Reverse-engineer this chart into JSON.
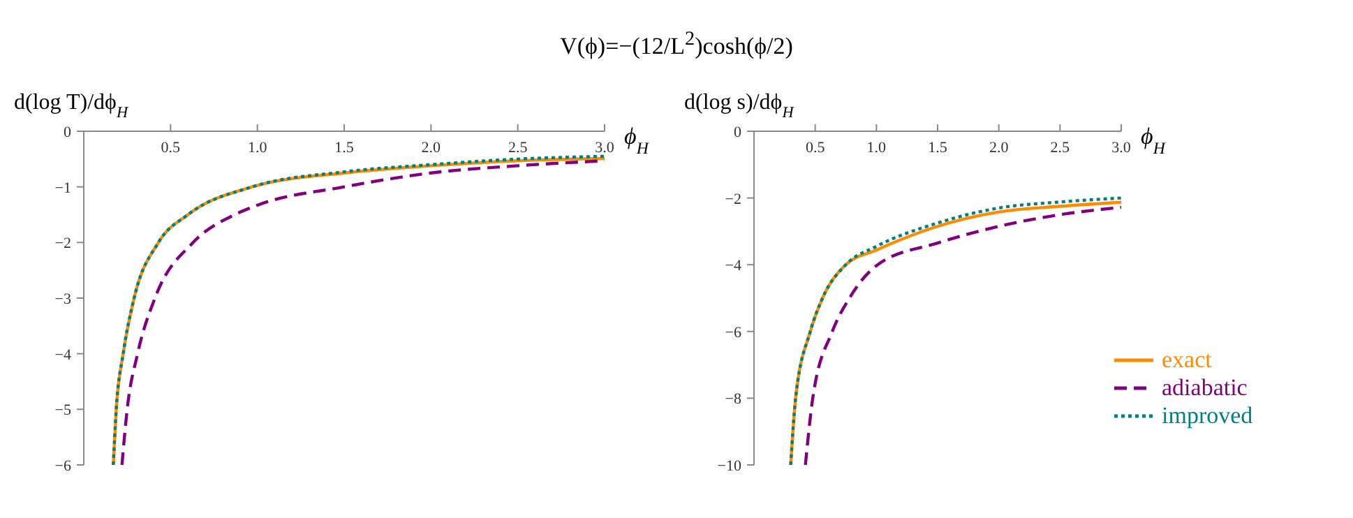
{
  "chart_data": [
    {
      "type": "line",
      "title": "V(ϕ)=−(12/L$^{2}$)cosh(ϕ/2)",
      "xlabel": "ϕ$_{H}$",
      "ylabel": "d(log T)/dϕ$_{H}$",
      "xlim": [
        0,
        3
      ],
      "xticks": [
        0.5,
        {
          "value": 1,
          "label": "1.0"
        },
        1.5,
        {
          "value": 2,
          "label": "2.0"
        },
        2.5,
        {
          "value": 3,
          "label": "3.0"
        }
      ],
      "ylim": [
        -6,
        0
      ],
      "yticks": [
        -6,
        -5,
        -4,
        -3,
        -2,
        -1,
        0
      ],
      "grid": false,
      "legend": false,
      "series": [
        {
          "color": "#ff8c00",
          "line_style": "solid",
          "x": [
            0.17,
            0.187,
            0.227,
            0.29,
            0.43,
            0.6,
            0.97,
            1.5,
            2.0,
            2.5,
            3.0
          ],
          "values": [
            -6,
            -5,
            -4,
            -3,
            -2,
            -1.5,
            -1,
            -0.75,
            -0.62,
            -0.53,
            -0.49
          ]
        },
        {
          "color": "#800080",
          "line_style": "dashed",
          "x": [
            0.22,
            0.25,
            0.31,
            0.41,
            0.63,
            0.87,
            1.0,
            1.5,
            2.0,
            2.5,
            3.0
          ],
          "values": [
            -6,
            -5,
            -4,
            -3,
            -2,
            -1.5,
            -1.33,
            -1.0,
            -0.75,
            -0.62,
            -0.53
          ]
        },
        {
          "color": "#008080",
          "line_style": "dotted",
          "x": [
            0.17,
            0.187,
            0.227,
            0.29,
            0.43,
            0.6,
            0.97,
            1.5,
            2.0,
            2.5,
            3.0
          ],
          "values": [
            -6,
            -5,
            -4,
            -3,
            -2,
            -1.5,
            -1,
            -0.73,
            -0.6,
            -0.5,
            -0.45
          ]
        }
      ]
    },
    {
      "type": "line",
      "xlabel": "ϕ$_{H}$",
      "ylabel": "d(log s)/dϕ$_{H}$",
      "xlim": [
        0,
        3
      ],
      "xticks": [
        0.5,
        {
          "value": 1,
          "label": "1.0"
        },
        1.5,
        {
          "value": 2,
          "label": "2.0"
        },
        2.5,
        {
          "value": 3,
          "label": "3.0"
        }
      ],
      "ylim": [
        -10,
        0
      ],
      "yticks": [
        -10,
        -8,
        -6,
        -4,
        -2,
        0
      ],
      "grid": false,
      "legend": "bottom right",
      "series": [
        {
          "name": "exact",
          "color": "#ff8c00",
          "line_style": "solid",
          "x": [
            0.3,
            0.34,
            0.46,
            0.56,
            0.75,
            1.0,
            1.5,
            2.0,
            2.5,
            3.0
          ],
          "values": [
            -10,
            -8,
            -6,
            -5,
            -4,
            -3.56,
            -2.85,
            -2.42,
            -2.25,
            -2.13
          ]
        },
        {
          "name": "adiabatic",
          "color": "#800080",
          "line_style": "dashed",
          "x": [
            0.42,
            0.48,
            0.64,
            0.78,
            1.01,
            1.5,
            2.0,
            2.5,
            3.0
          ],
          "values": [
            -10,
            -8,
            -6,
            -5,
            -4,
            -3.35,
            -2.85,
            -2.5,
            -2.28
          ]
        },
        {
          "name": "improved",
          "color": "#008080",
          "line_style": "dotted",
          "x": [
            0.3,
            0.34,
            0.46,
            0.56,
            0.75,
            1.0,
            1.5,
            2.0,
            2.5,
            3.0
          ],
          "values": [
            -10,
            -8,
            -6,
            -5,
            -4,
            -3.45,
            -2.75,
            -2.3,
            -2.12,
            -2.0
          ]
        }
      ]
    }
  ]
}
